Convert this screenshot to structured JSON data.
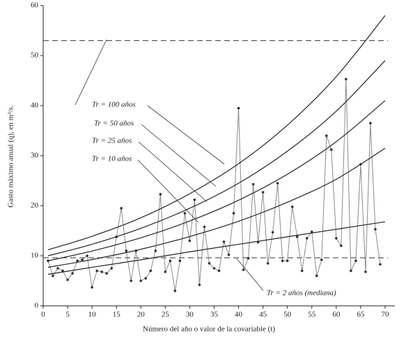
{
  "chart_data": {
    "type": "line",
    "x_label": "Número del año o valor de la covariable (t)",
    "y_label": "Gasto máximo anual (q), en m³/s.",
    "xlim": [
      0,
      72
    ],
    "ylim": [
      0,
      60
    ],
    "xticks": [
      0,
      5,
      10,
      15,
      20,
      25,
      30,
      35,
      40,
      45,
      50,
      55,
      60,
      65,
      70
    ],
    "yticks": [
      0,
      10,
      20,
      30,
      40,
      50,
      60
    ],
    "grid": false,
    "reference_lines": [
      {
        "value": 53,
        "style": "dashed",
        "color": "#333"
      },
      {
        "value": 9.6,
        "style": "dashed",
        "color": "#333"
      }
    ],
    "series": [
      {
        "color": "#8a8a8a",
        "marker_color": "#333",
        "markers": true,
        "x": [
          1,
          2,
          3,
          4,
          5,
          6,
          7,
          8,
          9,
          10,
          11,
          12,
          13,
          14,
          15,
          16,
          17,
          18,
          19,
          20,
          21,
          22,
          23,
          24,
          25,
          26,
          27,
          28,
          29,
          30,
          31,
          32,
          33,
          34,
          35,
          36,
          37,
          38,
          39,
          40,
          41,
          42,
          43,
          44,
          45,
          46,
          47,
          48,
          49,
          50,
          51,
          52,
          53,
          54,
          55,
          56,
          57,
          58,
          59,
          60,
          61,
          62,
          63,
          64,
          65,
          66,
          67,
          68,
          69
        ],
        "values": [
          9.0,
          6.0,
          7.5,
          7.0,
          5.2,
          6.5,
          9.0,
          9.2,
          10.0,
          3.7,
          7.0,
          6.8,
          6.5,
          7.5,
          13.8,
          19.5,
          11.0,
          5.0,
          11.0,
          5.0,
          5.5,
          7.0,
          11.0,
          22.3,
          6.8,
          9.0,
          3.0,
          9.0,
          18.5,
          13.0,
          21.2,
          4.2,
          15.8,
          8.5,
          7.5,
          7.0,
          12.8,
          10.2,
          18.5,
          39.5,
          7.2,
          9.5,
          24.3,
          12.7,
          22.7,
          8.5,
          14.7,
          24.5,
          9.0,
          9.0,
          19.8,
          13.8,
          7.0,
          13.5,
          14.8,
          6.0,
          9.2,
          34.0,
          31.2,
          13.5,
          12.0,
          45.3,
          7.0,
          9.0,
          28.3,
          6.8,
          36.5,
          15.3,
          8.3
        ]
      },
      {
        "name": "Tr = 100 años",
        "color": "#222",
        "x": [
          1,
          10,
          20,
          30,
          40,
          50,
          60,
          70
        ],
        "values": [
          11.2,
          13.9,
          17.6,
          22.4,
          28.4,
          36.1,
          45.8,
          58.0
        ]
      },
      {
        "name": "Tr = 50 años",
        "color": "#222",
        "x": [
          1,
          10,
          20,
          30,
          40,
          50,
          60,
          70
        ],
        "values": [
          10.0,
          12.3,
          15.5,
          19.5,
          24.5,
          30.9,
          38.9,
          49.0
        ]
      },
      {
        "name": "Tr = 25 años",
        "color": "#222",
        "x": [
          1,
          10,
          20,
          30,
          40,
          50,
          60,
          70
        ],
        "values": [
          9.0,
          10.95,
          13.6,
          16.95,
          21.1,
          26.3,
          32.8,
          41.0
        ]
      },
      {
        "name": "Tr = 10 años",
        "color": "#222",
        "x": [
          1,
          10,
          20,
          30,
          40,
          50,
          60,
          70
        ],
        "values": [
          7.7,
          9.25,
          11.3,
          13.85,
          16.9,
          20.7,
          25.3,
          31.5
        ]
      },
      {
        "name": "Tr = 2 años (mediana)",
        "color": "#222",
        "x": [
          1,
          10,
          20,
          30,
          40,
          50,
          60,
          70
        ],
        "values": [
          6.3,
          7.7,
          9.2,
          10.8,
          12.3,
          13.8,
          15.3,
          16.8
        ]
      }
    ]
  }
}
